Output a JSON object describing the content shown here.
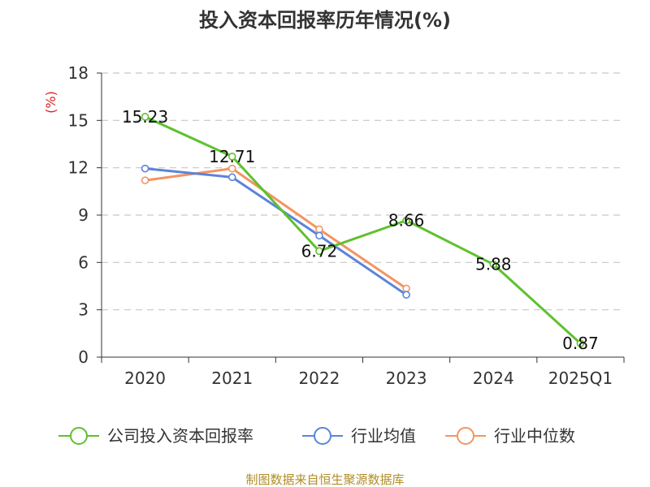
{
  "chart_data": {
    "type": "line",
    "title": "投入资本回报率历年情况(%)",
    "ylabel": "(%)",
    "xlabel": "",
    "ylim": [
      0,
      18
    ],
    "yticks": [
      0,
      3,
      6,
      9,
      12,
      15,
      18
    ],
    "grid": true,
    "legend_position": "bottom",
    "categories": [
      "2020",
      "2021",
      "2022",
      "2023",
      "2024",
      "2025Q1"
    ],
    "series": [
      {
        "name": "公司投入资本回报率",
        "color": "#5ec12e",
        "values": [
          15.23,
          12.71,
          6.72,
          8.66,
          5.88,
          0.87
        ],
        "labels": [
          "15.23",
          "12.71",
          "6.72",
          "8.66",
          "5.88",
          "0.87"
        ]
      },
      {
        "name": "行业均值",
        "color": "#5b84d9",
        "values": [
          11.95,
          11.4,
          7.7,
          3.95,
          null,
          null
        ]
      },
      {
        "name": "行业中位数",
        "color": "#f39463",
        "values": [
          11.2,
          11.95,
          8.1,
          4.35,
          null,
          null
        ]
      }
    ],
    "source": "制图数据来自恒生聚源数据库"
  }
}
